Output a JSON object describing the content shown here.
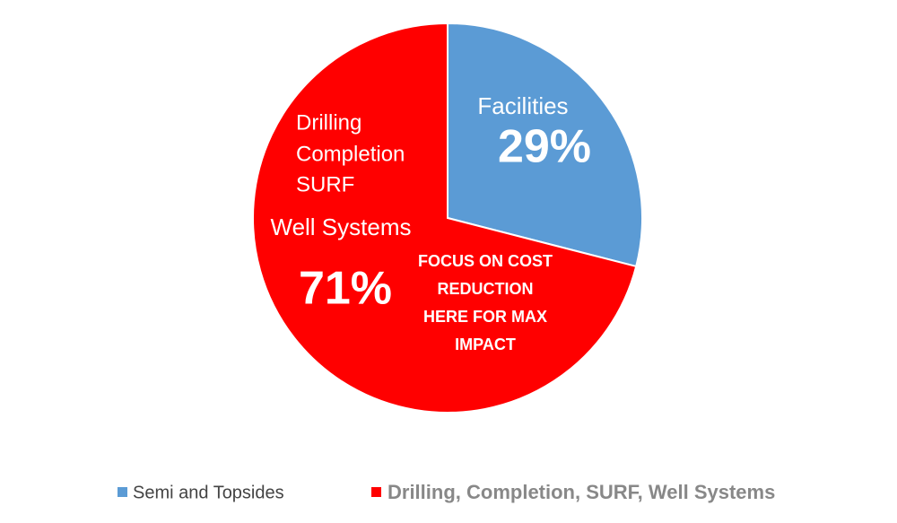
{
  "chart_data": {
    "type": "pie",
    "categories": [
      "Semi and Topsides",
      "Drilling, Completion, SURF, Well Systems"
    ],
    "values": [
      29,
      71
    ],
    "value_labels": [
      "29%",
      "71%"
    ],
    "colors": [
      "#5b9bd5",
      "#ff0000"
    ],
    "slice_labels": [
      [
        "Facilities"
      ],
      [
        "Drilling",
        "Completion",
        "SURF",
        "Well Systems"
      ]
    ],
    "annotation": [
      "FOCUS ON COST",
      "REDUCTION",
      "HERE FOR MAX",
      "IMPACT"
    ],
    "legend": "bottom"
  }
}
